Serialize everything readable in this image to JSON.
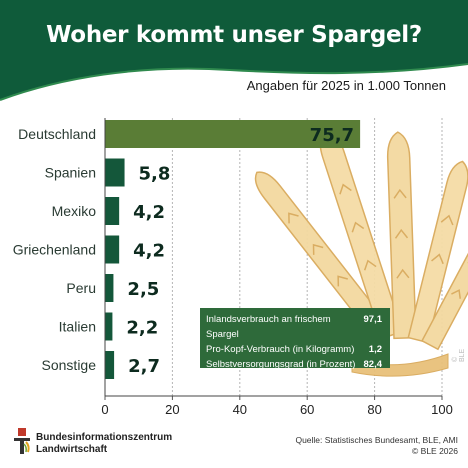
{
  "header": {
    "title": "Woher kommt unser Spargel?",
    "subtitle": "Angaben für 2025 in 1.000 Tonnen"
  },
  "colors": {
    "header_green": "#0f5b3a",
    "highlight_bar": "#5a7d36",
    "bar_dark": "#14573a",
    "info_green": "#2e6a3a",
    "asparagus": "#f3d9a0"
  },
  "chart_data": {
    "type": "bar",
    "orientation": "horizontal",
    "categories": [
      "Deutschland",
      "Spanien",
      "Mexiko",
      "Griechenland",
      "Peru",
      "Italien",
      "Sonstige"
    ],
    "values": [
      75.7,
      5.8,
      4.2,
      4.2,
      2.5,
      2.2,
      2.7
    ],
    "value_labels": [
      "75,7",
      "5,8",
      "4,2",
      "4,2",
      "2,5",
      "2,2",
      "2,7"
    ],
    "xlim": [
      0,
      100
    ],
    "ticks": [
      "0",
      "20",
      "40",
      "60",
      "80",
      "100"
    ],
    "grid": true,
    "highlight_category": "Deutschland"
  },
  "infobox": {
    "rows": [
      {
        "label": "Inlandsverbrauch an frischem Spargel",
        "value": "97,1"
      },
      {
        "label": "Pro-Kopf-Verbrauch (in Kilogramm)",
        "value": "1,2"
      },
      {
        "label": "Selbstversorgungsgrad (in Prozent)",
        "value": "82,4"
      }
    ]
  },
  "footer": {
    "org_line1": "Bundesinformationszentrum",
    "org_line2": "Landwirtschaft",
    "source": "Quelle: Statistisches Bundesamt, BLE, AMI",
    "copyright": "© BLE 2026",
    "watermark": "© BLE"
  },
  "icons": {
    "logo": "ble-logo-icon",
    "illustration": "asparagus-illustration"
  }
}
